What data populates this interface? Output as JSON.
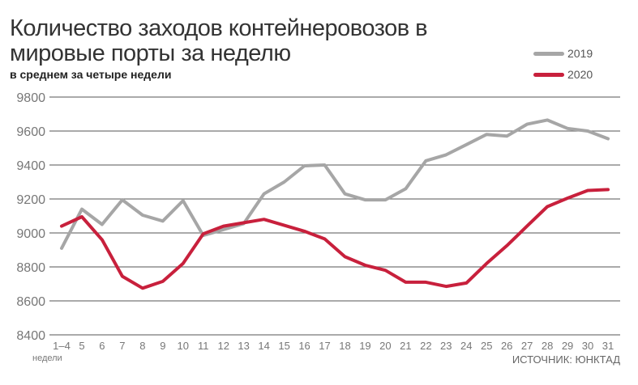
{
  "chart_data": {
    "type": "line",
    "title": "Количество заходов контейнеровозов в мировые порты за неделю",
    "subtitle": "в среднем за четыре недели",
    "xlabel": "недели",
    "source": "ИСТОЧНИК: ЮНКТАД",
    "categories": [
      "1–4",
      "5",
      "6",
      "7",
      "8",
      "9",
      "10",
      "11",
      "12",
      "13",
      "14",
      "15",
      "16",
      "17",
      "18",
      "19",
      "20",
      "21",
      "22",
      "23",
      "24",
      "25",
      "26",
      "27",
      "28",
      "29",
      "30",
      "31"
    ],
    "ylim": [
      8400,
      9800
    ],
    "yticks": [
      8400,
      8600,
      8800,
      9000,
      9200,
      9400,
      9600,
      9800
    ],
    "grid": true,
    "legend_position": "top-right",
    "series": [
      {
        "name": "2019",
        "color": "#a6a6a6",
        "values": [
          8910,
          9140,
          9050,
          9195,
          9105,
          9070,
          9190,
          8985,
          9020,
          9055,
          9230,
          9300,
          9395,
          9400,
          9230,
          9195,
          9195,
          9260,
          9425,
          9460,
          9520,
          9580,
          9570,
          9640,
          9665,
          9615,
          9600,
          9555
        ]
      },
      {
        "name": "2020",
        "color": "#c8203c",
        "values": [
          9040,
          9095,
          8960,
          8745,
          8675,
          8715,
          8820,
          8995,
          9040,
          9060,
          9080,
          9045,
          9010,
          8965,
          8860,
          8810,
          8780,
          8710,
          8710,
          8685,
          8705,
          8820,
          8925,
          9040,
          9155,
          9205,
          9250,
          9255
        ]
      }
    ]
  }
}
